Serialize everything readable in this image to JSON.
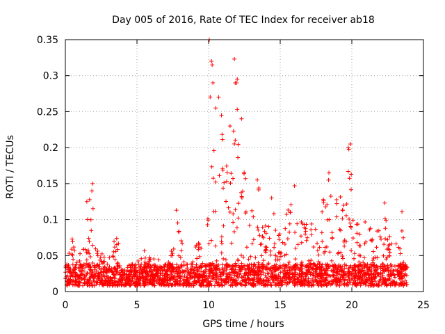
{
  "chart_data": {
    "type": "scatter",
    "title": "Day 005 of 2016, Rate Of TEC Index for receiver ab18",
    "xlabel": "GPS time / hours",
    "ylabel": "ROTI / TECUs",
    "xlim": [
      0,
      25
    ],
    "ylim": [
      0,
      0.35
    ],
    "x_ticks": [
      "0",
      "5",
      "10",
      "15",
      "20",
      "25"
    ],
    "y_ticks": [
      "0",
      "0.05",
      "0.1",
      "0.15",
      "0.2",
      "0.25",
      "0.3",
      "0.35"
    ],
    "x_tick_values": [
      0,
      5,
      10,
      15,
      20,
      25
    ],
    "y_tick_values": [
      0,
      0.05,
      0.1,
      0.15,
      0.2,
      0.25,
      0.3,
      0.35
    ],
    "grid": true,
    "marker": "+",
    "color": "#ff0000",
    "envelope": [
      [
        0.0,
        0.03
      ],
      [
        0.3,
        0.06
      ],
      [
        0.5,
        0.09
      ],
      [
        0.8,
        0.05
      ],
      [
        1.1,
        0.07
      ],
      [
        1.5,
        0.11
      ],
      [
        1.9,
        0.15
      ],
      [
        2.3,
        0.05
      ],
      [
        2.8,
        0.06
      ],
      [
        3.2,
        0.05
      ],
      [
        3.6,
        0.095
      ],
      [
        4.0,
        0.03
      ],
      [
        4.6,
        0.04
      ],
      [
        5.2,
        0.045
      ],
      [
        5.6,
        0.06
      ],
      [
        6.0,
        0.045
      ],
      [
        6.4,
        0.05
      ],
      [
        7.0,
        0.03
      ],
      [
        7.4,
        0.06
      ],
      [
        7.8,
        0.112
      ],
      [
        8.2,
        0.075
      ],
      [
        8.6,
        0.02
      ],
      [
        9.0,
        0.06
      ],
      [
        9.4,
        0.075
      ],
      [
        9.7,
        0.02
      ],
      [
        10.0,
        0.17
      ],
      [
        10.1,
        0.3
      ],
      [
        10.3,
        0.33
      ],
      [
        10.6,
        0.2
      ],
      [
        10.9,
        0.26
      ],
      [
        11.2,
        0.17
      ],
      [
        11.6,
        0.22
      ],
      [
        11.9,
        0.32
      ],
      [
        12.2,
        0.2
      ],
      [
        12.6,
        0.17
      ],
      [
        13.0,
        0.12
      ],
      [
        13.5,
        0.15
      ],
      [
        14.0,
        0.09
      ],
      [
        14.5,
        0.13
      ],
      [
        15.0,
        0.095
      ],
      [
        15.5,
        0.115
      ],
      [
        16.0,
        0.145
      ],
      [
        16.5,
        0.12
      ],
      [
        17.0,
        0.09
      ],
      [
        17.5,
        0.11
      ],
      [
        18.0,
        0.13
      ],
      [
        18.3,
        0.16
      ],
      [
        18.7,
        0.145
      ],
      [
        19.1,
        0.13
      ],
      [
        19.5,
        0.15
      ],
      [
        19.8,
        0.205
      ],
      [
        20.2,
        0.1
      ],
      [
        20.6,
        0.09
      ],
      [
        21.0,
        0.1
      ],
      [
        21.5,
        0.08
      ],
      [
        22.0,
        0.1
      ],
      [
        22.3,
        0.123
      ],
      [
        22.7,
        0.07
      ],
      [
        23.0,
        0.06
      ],
      [
        23.5,
        0.11
      ],
      [
        23.9,
        0.06
      ]
    ],
    "highlights": [
      [
        10.05,
        0.35
      ],
      [
        10.2,
        0.32
      ],
      [
        10.25,
        0.315
      ],
      [
        10.3,
        0.29
      ],
      [
        11.8,
        0.323
      ],
      [
        12.0,
        0.295
      ],
      [
        11.95,
        0.29
      ],
      [
        10.5,
        0.255
      ],
      [
        10.7,
        0.27
      ],
      [
        10.9,
        0.245
      ],
      [
        12.3,
        0.24
      ],
      [
        11.5,
        0.23
      ],
      [
        12.0,
        0.253
      ],
      [
        19.9,
        0.205
      ],
      [
        19.75,
        0.2
      ],
      [
        1.9,
        0.15
      ],
      [
        1.5,
        0.125
      ],
      [
        1.85,
        0.14
      ],
      [
        7.75,
        0.113
      ],
      [
        23.5,
        0.111
      ],
      [
        22.3,
        0.123
      ],
      [
        13.4,
        0.155
      ],
      [
        16.0,
        0.147
      ],
      [
        18.4,
        0.165
      ],
      [
        14.4,
        0.13
      ]
    ]
  }
}
